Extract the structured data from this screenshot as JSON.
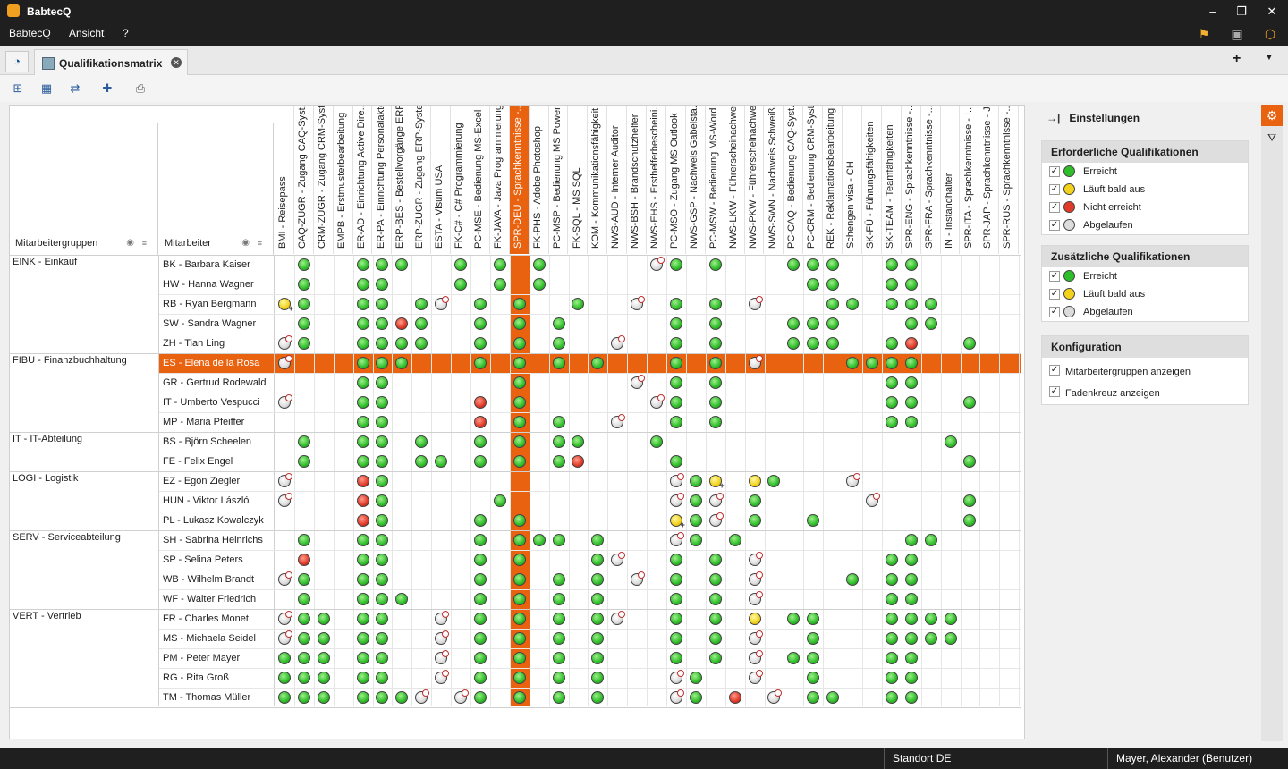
{
  "window": {
    "title": "BabtecQ"
  },
  "menu": [
    "BabtecQ",
    "Ansicht",
    "?"
  ],
  "tab": {
    "label": "Qualifikationsmatrix"
  },
  "headers": {
    "groups": "Mitarbeitergruppen",
    "employees": "Mitarbeiter"
  },
  "columns": [
    "BMI - Reisepass",
    "CAQ-ZUGR - Zugang CAQ-Syst...",
    "CRM-ZUGR - Zugang CRM-Syst...",
    "EMPB - Erstmusterbearbeitung",
    "ER-AD - Einrichtung Active Dire...",
    "ER-PA - Einrichtung Personalakte",
    "ERP-BES - Bestellvorgänge ERP...",
    "ERP-ZUGR - Zugang ERP-System",
    "ESTA - Visum USA",
    "FK-C# - C# Programmierung",
    "PC-MSE - Bedienung MS-Excel",
    "FK-JAVA - Java Programmierung",
    "SPR-DEU - Sprachkenntnisse -...",
    "FK-PHS - Adobe Photoshop",
    "PC-MSP - Bedienung MS Power...",
    "FK-SQL - MS SQL",
    "KOM - Kommunikationsfähigkeit",
    "NWS-AUD - Interner Auditor",
    "NWS-BSH - Brandschutzhelfer",
    "NWS-EHS - Ersthelferbescheini...",
    "PC-MSO - Zugang MS Outlook",
    "NWS-GSP - Nachweis Gabelsta...",
    "PC-MSW - Bedienung MS-Word",
    "NWS-LKW - Führerscheinachwe...",
    "NWS-PKW - Führerscheinachwe...",
    "NWS-SWN - Nachweis Schweiß...",
    "PC-CAQ - Bedienung CAQ-Syst...",
    "PC-CRM - Bedienung CRM-Syst...",
    "REK - Reklamationsbearbeitung",
    "Schengen visa - CH",
    "SK-FÜ - Führungsfähigkeiten",
    "SK-TEAM - Teamfähigkeiten",
    "SPR-ENG - Sprachkenntnisse -...",
    "SPR-FRA - Sprachkenntnisse -...",
    "IN - Instandhalter",
    "SPR-ITA - Sprachkenntnisse - I...",
    "SPR-JAP - Sprachkenntnisse - J...",
    "SPR-RUS - Sprachkenntnisse -..."
  ],
  "selected_column": 12,
  "groups": [
    {
      "name": "EINK - Einkauf",
      "start": 0,
      "count": 5
    },
    {
      "name": "FIBU - Finanzbuchhaltung",
      "start": 5,
      "count": 4
    },
    {
      "name": "IT - IT-Abteilung",
      "start": 9,
      "count": 2
    },
    {
      "name": "LOGI - Logistik",
      "start": 11,
      "count": 3
    },
    {
      "name": "SERV - Serviceabteilung",
      "start": 14,
      "count": 4
    },
    {
      "name": "VERT - Vertrieb",
      "start": 18,
      "count": 5
    }
  ],
  "employees": [
    "BK - Barbara Kaiser",
    "HW - Hanna Wagner",
    "RB - Ryan Bergmann",
    "SW - Sandra Wagner",
    "ZH - Tian Ling",
    "ES - Elena de la Rosa",
    "GR - Gertrud Rodewald",
    "IT - Umberto Vespucci",
    "MP - Maria Pfeiffer",
    "BS - Björn Scheelen",
    "FE - Felix Engel",
    "EZ - Egon Ziegler",
    "HUN - Viktor László",
    "PL - Lukasz Kowalczyk",
    "SH - Sabrina Heinrichs",
    "SP - Selina Peters",
    "WB - Wilhelm Brandt",
    "WF - Walter Friedrich",
    "FR - Charles Monet",
    "MS - Michaela Seidel",
    "PM - Peter Mayer",
    "RG - Rita Groß",
    "TM - Thomas Müller"
  ],
  "selected_row": 5,
  "matrix": [
    ".g..ggg..g.g.g.....Eg.g...ggg..gg.....",
    ".g..gg...g.g.g.............gg..gg.....",
    "Yg..gg.gE.g.g..g..E.g.g.E...gg.ggg....",
    ".g..ggrg..g.g.g.....g.g...ggg...gg....",
    "Eg..gggg..g.g.g..E..g.g...ggg..gr..g..",
    "E...ggg...g.g.g.g...g.g.E....gggg.....",
    "....gg......g.....E.g.g........gg.....",
    "E...gg....r.g......Eg.g........gg..g..",
    "....gg....r.g.g..E..g.g........gg.....",
    ".g..gg.g..g.g.gg...g..............g...",
    ".g..gg.gg.g.g.gr....g..............g..",
    "E...rg..............EgY.yg...E........",
    "E...rg.....g........EgE.g.....E....g..",
    "....rg....g.g.......YgE.g..g.......g..",
    ".g..gg....g.ggg.g...Eg.g........gg....",
    ".r..gg....g.g...gE..g.g.E......gg.....",
    "Eg..gg....g.g.g.g.E.g.g.E....g.gg.....",
    ".g..ggg...g.g.g.g...g.g.E......gg.....",
    "Egg.gg..E.g.g.g.gE..g.g.y.gg...gggg...",
    "Egg.gg..E.g.g.g.g...g.g.E..g...gggg...",
    "ggg.gg..E.g.g.g.g...g.g.E.gg...gg.....",
    "ggg.gg..E.g.g.g.g...Eg..E..g...gg.....",
    "ggg.gggE.Eg.g.g.g...Eg.r.E.gg..gg....."
  ],
  "settings": {
    "title": "Einstellungen",
    "required": {
      "title": "Erforderliche Qualifikationen",
      "items": [
        {
          "label": "Erreicht",
          "color": "#2fbd2a"
        },
        {
          "label": "Läuft bald aus",
          "color": "#f2d21c"
        },
        {
          "label": "Nicht erreicht",
          "color": "#e03a28"
        },
        {
          "label": "Abgelaufen",
          "color": "#dcdcdc"
        }
      ]
    },
    "additional": {
      "title": "Zusätzliche Qualifikationen",
      "items": [
        {
          "label": "Erreicht",
          "color": "#2fbd2a"
        },
        {
          "label": "Läuft bald aus",
          "color": "#f2d21c"
        },
        {
          "label": "Abgelaufen",
          "color": "#dcdcdc"
        }
      ]
    },
    "config": {
      "title": "Konfiguration",
      "items": [
        "Mitarbeitergruppen anzeigen",
        "Fadenkreuz anzeigen"
      ]
    }
  },
  "status": {
    "location": "Standort DE",
    "user": "Mayer, Alexander (Benutzer)"
  },
  "colors": {
    "accent": "#e8620f",
    "titlebar": "#1f1f1f"
  }
}
